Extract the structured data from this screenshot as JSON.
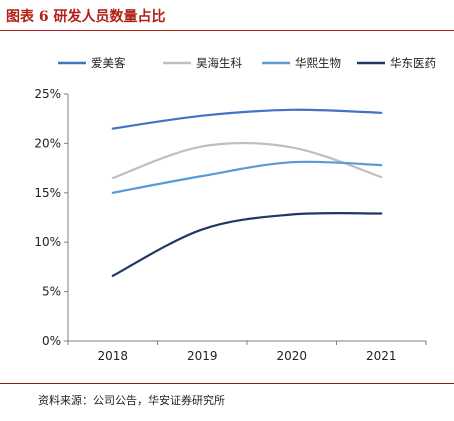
{
  "header": {
    "title": "图表 6  研发人员数量占比"
  },
  "footer": {
    "source": "资料来源：公司公告，华安证券研究所"
  },
  "chart_data": {
    "type": "line",
    "title": "",
    "xlabel": "",
    "ylabel": "",
    "x": [
      "2018",
      "2019",
      "2020",
      "2021"
    ],
    "ylim": [
      0,
      25
    ],
    "yticks": [
      "0%",
      "5%",
      "10%",
      "15%",
      "20%",
      "25%"
    ],
    "ytick_values": [
      0,
      5,
      10,
      15,
      20,
      25
    ],
    "grid": false,
    "legend_position": "top",
    "series": [
      {
        "name": "爱美客",
        "color": "#4472C4",
        "values": [
          21.5,
          22.8,
          23.4,
          23.1
        ]
      },
      {
        "name": "昊海生科",
        "color": "#BFBFBF",
        "values": [
          16.5,
          19.7,
          19.6,
          16.6
        ]
      },
      {
        "name": "华熙生物",
        "color": "#5B9BD5",
        "values": [
          15.0,
          16.7,
          18.1,
          17.8
        ]
      },
      {
        "name": "华东医药",
        "color": "#203864",
        "values": [
          6.6,
          11.3,
          12.8,
          12.9
        ]
      }
    ]
  }
}
